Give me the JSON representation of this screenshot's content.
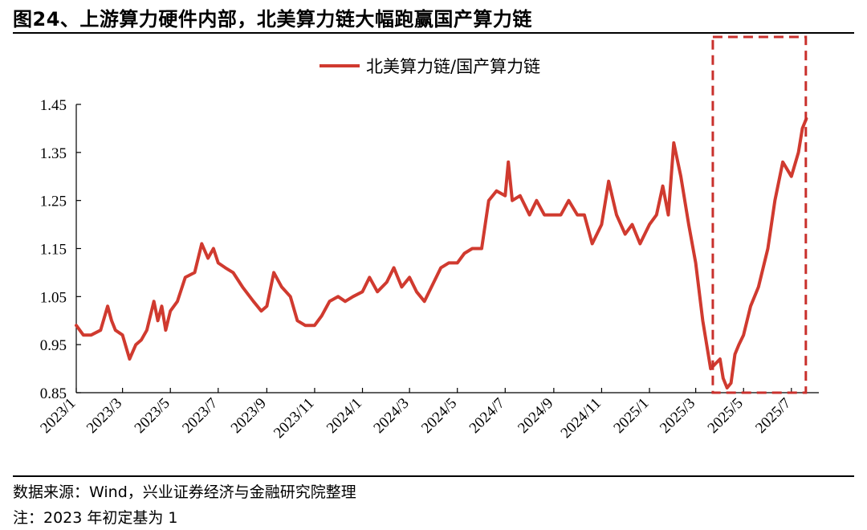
{
  "title": "图24、上游算力硬件内部，北美算力链大幅跑赢国产算力链",
  "source": "数据来源：Wind，兴业证券经济与金融研究院整理",
  "note": "注：2023 年初定基为 1",
  "colors": {
    "series": "#d03a2f",
    "highlight": "#c9302c",
    "axis": "#000000"
  },
  "chart_data": {
    "type": "line",
    "title": "",
    "xlabel": "",
    "ylabel": "",
    "ylim": [
      0.85,
      1.45
    ],
    "y_ticks": [
      "0.85",
      "0.95",
      "1.05",
      "1.15",
      "1.25",
      "1.35",
      "1.45"
    ],
    "x_ticks": [
      "2023/1",
      "2023/3",
      "2023/5",
      "2023/7",
      "2023/9",
      "2023/11",
      "2024/1",
      "2024/3",
      "2024/5",
      "2024/7",
      "2024/9",
      "2024/11",
      "2025/1",
      "2025/3",
      "2025/5",
      "2025/7"
    ],
    "grid": false,
    "legend": "top-center",
    "highlight_box": {
      "from": "2025/4",
      "to": "2025/7",
      "style": "dashed"
    },
    "series": [
      {
        "name": "北美算力链/国产算力链",
        "x": [
          "2023-01-01",
          "2023-01-10",
          "2023-01-20",
          "2023-02-01",
          "2023-02-10",
          "2023-02-15",
          "2023-02-20",
          "2023-03-01",
          "2023-03-10",
          "2023-03-18",
          "2023-03-25",
          "2023-04-01",
          "2023-04-10",
          "2023-04-15",
          "2023-04-20",
          "2023-04-25",
          "2023-05-01",
          "2023-05-10",
          "2023-05-20",
          "2023-06-01",
          "2023-06-10",
          "2023-06-18",
          "2023-06-25",
          "2023-07-01",
          "2023-07-10",
          "2023-07-20",
          "2023-08-01",
          "2023-08-15",
          "2023-08-25",
          "2023-09-01",
          "2023-09-10",
          "2023-09-20",
          "2023-10-01",
          "2023-10-10",
          "2023-10-20",
          "2023-11-01",
          "2023-11-10",
          "2023-11-20",
          "2023-12-01",
          "2023-12-10",
          "2023-12-20",
          "2024-01-01",
          "2024-01-10",
          "2024-01-20",
          "2024-02-01",
          "2024-02-10",
          "2024-02-20",
          "2024-03-01",
          "2024-03-10",
          "2024-03-20",
          "2024-04-01",
          "2024-04-10",
          "2024-04-20",
          "2024-05-01",
          "2024-05-10",
          "2024-05-20",
          "2024-06-01",
          "2024-06-10",
          "2024-06-20",
          "2024-07-01",
          "2024-07-05",
          "2024-07-10",
          "2024-07-20",
          "2024-08-01",
          "2024-08-10",
          "2024-08-20",
          "2024-09-01",
          "2024-09-10",
          "2024-09-20",
          "2024-10-01",
          "2024-10-10",
          "2024-10-20",
          "2024-11-01",
          "2024-11-10",
          "2024-11-20",
          "2024-12-01",
          "2024-12-10",
          "2024-12-20",
          "2025-01-01",
          "2025-01-10",
          "2025-01-18",
          "2025-01-25",
          "2025-02-01",
          "2025-02-10",
          "2025-02-20",
          "2025-03-01",
          "2025-03-10",
          "2025-03-20",
          "2025-04-01",
          "2025-04-05",
          "2025-04-10",
          "2025-04-15",
          "2025-04-20",
          "2025-04-25",
          "2025-05-01",
          "2025-05-10",
          "2025-05-20",
          "2025-06-01",
          "2025-06-10",
          "2025-06-20",
          "2025-07-01",
          "2025-07-10",
          "2025-07-15",
          "2025-07-20"
        ],
        "values": [
          0.99,
          0.97,
          0.97,
          0.98,
          1.03,
          1.0,
          0.98,
          0.97,
          0.92,
          0.95,
          0.96,
          0.98,
          1.04,
          1.0,
          1.03,
          0.98,
          1.02,
          1.04,
          1.09,
          1.1,
          1.16,
          1.13,
          1.15,
          1.12,
          1.11,
          1.1,
          1.07,
          1.04,
          1.02,
          1.03,
          1.1,
          1.07,
          1.05,
          1.0,
          0.99,
          0.99,
          1.01,
          1.04,
          1.05,
          1.04,
          1.05,
          1.06,
          1.09,
          1.06,
          1.08,
          1.11,
          1.07,
          1.09,
          1.06,
          1.04,
          1.08,
          1.11,
          1.12,
          1.12,
          1.14,
          1.15,
          1.15,
          1.25,
          1.27,
          1.26,
          1.33,
          1.25,
          1.26,
          1.22,
          1.25,
          1.22,
          1.22,
          1.22,
          1.25,
          1.22,
          1.22,
          1.16,
          1.2,
          1.29,
          1.22,
          1.18,
          1.2,
          1.16,
          1.2,
          1.22,
          1.28,
          1.22,
          1.37,
          1.3,
          1.2,
          1.12,
          1.0,
          0.9,
          0.92,
          0.88,
          0.86,
          0.87,
          0.93,
          0.95,
          0.97,
          1.03,
          1.07,
          1.15,
          1.25,
          1.33,
          1.3,
          1.35,
          1.4,
          1.42
        ]
      }
    ]
  }
}
